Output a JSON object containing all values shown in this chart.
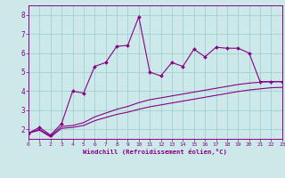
{
  "xlabel": "Windchill (Refroidissement éolien,°C)",
  "xlim": [
    0,
    23
  ],
  "ylim": [
    1.5,
    8.5
  ],
  "yticks": [
    2,
    3,
    4,
    5,
    6,
    7,
    8
  ],
  "xticks": [
    0,
    1,
    2,
    3,
    4,
    5,
    6,
    7,
    8,
    9,
    10,
    11,
    12,
    13,
    14,
    15,
    16,
    17,
    18,
    19,
    20,
    21,
    22,
    23
  ],
  "bg_color": "#cce8e8",
  "line_color": "#880088",
  "grid_color": "#99cccc",
  "line_main": [
    1.8,
    2.1,
    1.7,
    2.3,
    4.0,
    3.9,
    5.3,
    5.5,
    6.35,
    6.4,
    7.9,
    5.0,
    4.8,
    5.5,
    5.3,
    6.2,
    5.8,
    6.3,
    6.25,
    6.25,
    6.0,
    4.5,
    4.5,
    4.5
  ],
  "line_trend1": [
    1.8,
    2.0,
    1.65,
    2.15,
    2.2,
    2.35,
    2.65,
    2.85,
    3.05,
    3.2,
    3.4,
    3.55,
    3.65,
    3.75,
    3.85,
    3.95,
    4.05,
    4.15,
    4.25,
    4.35,
    4.42,
    4.47,
    4.5,
    4.5
  ],
  "line_trend2": [
    1.8,
    1.95,
    1.6,
    2.05,
    2.1,
    2.2,
    2.45,
    2.62,
    2.78,
    2.9,
    3.05,
    3.18,
    3.28,
    3.38,
    3.48,
    3.58,
    3.68,
    3.78,
    3.88,
    3.98,
    4.06,
    4.12,
    4.18,
    4.2
  ]
}
